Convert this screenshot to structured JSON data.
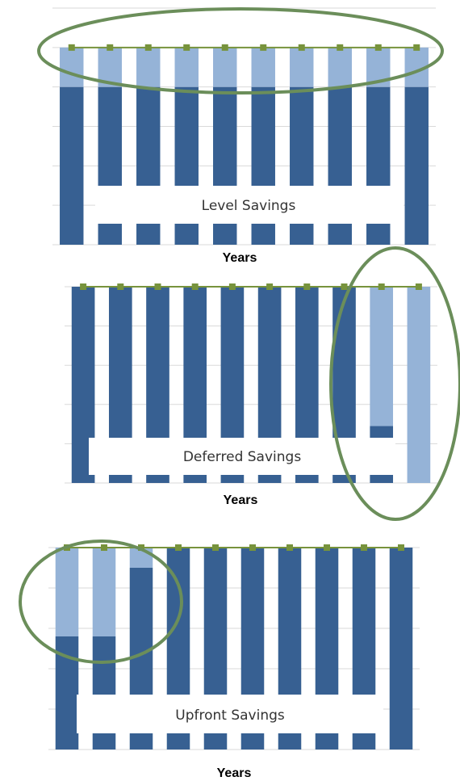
{
  "chart_data": [
    {
      "type": "bar",
      "stacked": true,
      "annotation": "Level Savings",
      "xlabel": "Years",
      "categories": [
        null,
        null,
        null,
        null,
        null,
        null,
        null,
        null,
        null,
        null
      ],
      "series": [
        {
          "color": "#376092",
          "values": [
            80,
            80,
            80,
            80,
            80,
            80,
            80,
            80,
            80,
            80
          ]
        },
        {
          "color": "#95b3d7",
          "values": [
            20,
            20,
            20,
            20,
            20,
            20,
            20,
            20,
            20,
            20
          ]
        },
        {
          "type": "line",
          "color": "#77933c",
          "values": [
            100,
            100,
            100,
            100,
            100,
            100,
            100,
            100,
            100,
            100
          ]
        }
      ],
      "ylim": [
        0,
        120
      ],
      "yticks": [
        0,
        20,
        40,
        60,
        80,
        100,
        120
      ],
      "grid": true
    },
    {
      "type": "bar",
      "stacked": true,
      "annotation": "Deferred Savings",
      "xlabel": "Years",
      "categories": [
        null,
        null,
        null,
        null,
        null,
        null,
        null,
        null,
        null,
        null
      ],
      "series": [
        {
          "color": "#376092",
          "values": [
            100,
            100,
            100,
            100,
            100,
            100,
            100,
            100,
            29,
            0
          ]
        },
        {
          "color": "#95b3d7",
          "values": [
            0,
            0,
            0,
            0,
            0,
            0,
            0,
            0,
            71,
            100
          ]
        },
        {
          "type": "line",
          "color": "#77933c",
          "values": [
            100,
            100,
            100,
            100,
            100,
            100,
            100,
            100,
            100,
            100
          ]
        }
      ],
      "ylim": [
        0,
        100
      ],
      "yticks": [
        0,
        20,
        40,
        60,
        80,
        100
      ],
      "grid": true
    },
    {
      "type": "bar",
      "stacked": true,
      "annotation": "Upfront Savings",
      "xlabel": "Years",
      "categories": [
        null,
        null,
        null,
        null,
        null,
        null,
        null,
        null,
        null,
        null
      ],
      "series": [
        {
          "color": "#376092",
          "values": [
            56,
            56,
            90,
            100,
            100,
            100,
            100,
            100,
            100,
            100
          ]
        },
        {
          "color": "#95b3d7",
          "values": [
            44,
            44,
            10,
            0,
            0,
            0,
            0,
            0,
            0,
            0
          ]
        },
        {
          "type": "line",
          "color": "#77933c",
          "values": [
            100,
            100,
            100,
            100,
            100,
            100,
            100,
            100,
            100,
            100
          ]
        }
      ],
      "ylim": [
        0,
        100
      ],
      "yticks": [
        0,
        20,
        40,
        60,
        80,
        100
      ],
      "grid": true
    }
  ]
}
